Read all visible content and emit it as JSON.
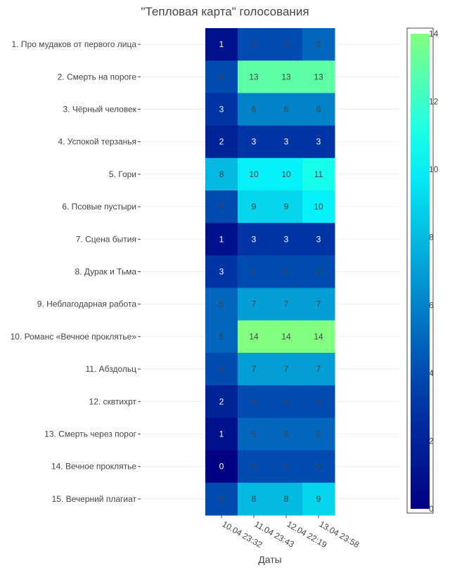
{
  "chart_data": {
    "type": "heatmap",
    "title": "\"Тепловая карта\" голосования",
    "xlabel": "Даты",
    "ylabel": "",
    "x": [
      "10.04 23:32",
      "11.04 23:43",
      "12.04 22:19",
      "13.04 23:58"
    ],
    "y": [
      "1. Про мудаков от первого лица",
      "2. Смерть на пороге",
      "3. Чёрный человек",
      "4. Успокой терзанья",
      "5. Гори",
      "6. Псовые пустыри",
      "7. Сцена бытия",
      "8. Дурак и Тьма",
      "9. Неблагодарная работа",
      "10. Романс «Вечное проклятье»",
      "11. Абздольц",
      "12. сквтихрт",
      "13. Смерть через порог",
      "14. Вечное проклятье",
      "15. Вечерний плагиат"
    ],
    "z": [
      [
        1,
        4,
        4,
        5
      ],
      [
        4,
        13,
        13,
        13
      ],
      [
        3,
        6,
        6,
        6
      ],
      [
        2,
        3,
        3,
        3
      ],
      [
        8,
        10,
        10,
        11
      ],
      [
        4,
        9,
        9,
        10
      ],
      [
        1,
        3,
        3,
        3
      ],
      [
        3,
        4,
        4,
        4
      ],
      [
        5,
        7,
        7,
        7
      ],
      [
        5,
        14,
        14,
        14
      ],
      [
        4,
        7,
        7,
        7
      ],
      [
        2,
        4,
        4,
        4
      ],
      [
        1,
        5,
        5,
        5
      ],
      [
        0,
        4,
        4,
        4
      ],
      [
        4,
        8,
        8,
        9
      ]
    ],
    "zlim": [
      0,
      14
    ],
    "colorscale": "Jet",
    "colorbar_ticks": [
      0,
      2,
      4,
      6,
      8,
      10,
      12,
      14
    ],
    "colorbar_position": "right"
  }
}
